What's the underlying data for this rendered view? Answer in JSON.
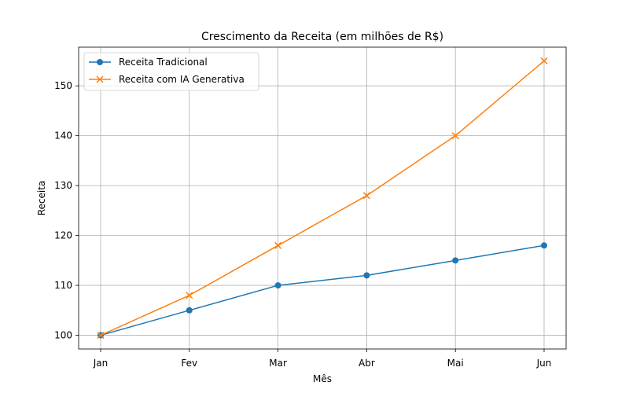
{
  "chart_data": {
    "type": "line",
    "title": "Crescimento da Receita (em milhões de R$)",
    "xlabel": "Mês",
    "ylabel": "Receita",
    "categories": [
      "Jan",
      "Fev",
      "Mar",
      "Abr",
      "Mai",
      "Jun"
    ],
    "ylim": [
      97.25,
      157.75
    ],
    "yticks": [
      100,
      110,
      120,
      130,
      140,
      150
    ],
    "grid": true,
    "legend_position": "top-left",
    "series": [
      {
        "name": "Receita Tradicional",
        "values": [
          100,
          105,
          110,
          112,
          115,
          118
        ],
        "color": "#1f77b4",
        "marker": "circle"
      },
      {
        "name": "Receita com IA Generativa",
        "values": [
          100,
          108,
          118,
          128,
          140,
          155
        ],
        "color": "#ff7f0e",
        "marker": "x"
      }
    ]
  }
}
